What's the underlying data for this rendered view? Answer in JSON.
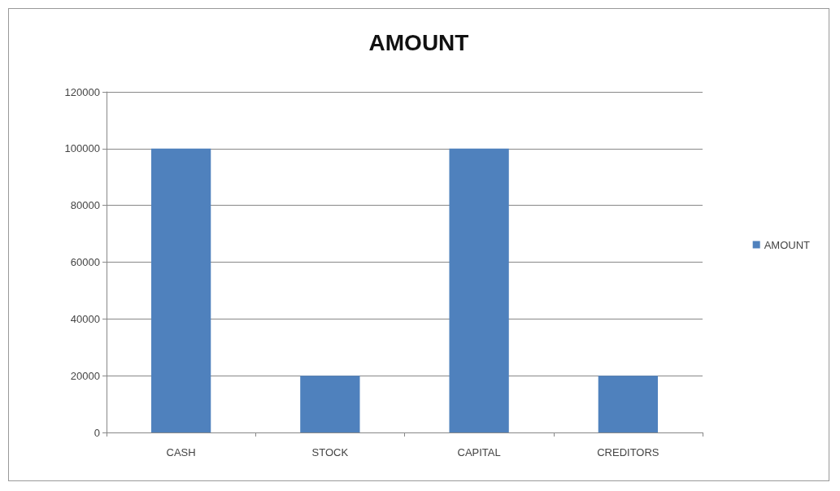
{
  "chart_data": {
    "type": "bar",
    "title": "AMOUNT",
    "categories": [
      "CASH",
      "STOCK",
      "CAPITAL",
      "CREDITORS"
    ],
    "series": [
      {
        "name": "AMOUNT",
        "color": "#4f81bd",
        "values": [
          100000,
          20000,
          100000,
          20000
        ]
      }
    ],
    "ylim": [
      0,
      120000
    ],
    "yticks": [
      0,
      20000,
      40000,
      60000,
      80000,
      100000,
      120000
    ],
    "grid": "y",
    "legend": "right"
  }
}
